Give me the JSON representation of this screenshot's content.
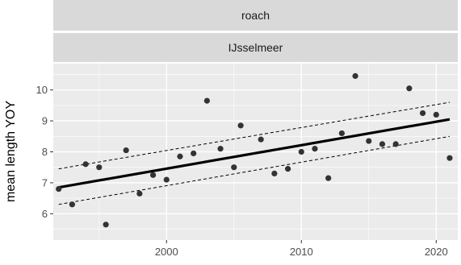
{
  "facet": {
    "strip_top": "roach",
    "strip_bottom": "IJsselmeer"
  },
  "colors": {
    "panel_background": "#ebebeb",
    "strip_background": "#d9d9d9",
    "gridline": "#ffffff",
    "point": "#333333",
    "fit_line": "#000000",
    "confidence_band": "#000000"
  },
  "chart_data": {
    "type": "scatter",
    "ylabel": "mean length YOY",
    "xlabel": "",
    "title": "",
    "xlim": [
      1991.6,
      2021.6
    ],
    "ylim": [
      5.15,
      10.85
    ],
    "x_ticks": [
      2000,
      2010,
      2020
    ],
    "y_ticks": [
      6,
      7,
      8,
      9,
      10
    ],
    "grid": true,
    "points": [
      {
        "x": 1992,
        "y": 6.8
      },
      {
        "x": 1993,
        "y": 6.3
      },
      {
        "x": 1994,
        "y": 7.6
      },
      {
        "x": 1995,
        "y": 7.5
      },
      {
        "x": 1995.5,
        "y": 5.65
      },
      {
        "x": 1997,
        "y": 8.05
      },
      {
        "x": 1998,
        "y": 6.65
      },
      {
        "x": 1999,
        "y": 7.25
      },
      {
        "x": 2000,
        "y": 7.1
      },
      {
        "x": 2001,
        "y": 7.85
      },
      {
        "x": 2002,
        "y": 7.95
      },
      {
        "x": 2003,
        "y": 9.65
      },
      {
        "x": 2004,
        "y": 8.1
      },
      {
        "x": 2005,
        "y": 7.5
      },
      {
        "x": 2005.5,
        "y": 8.85
      },
      {
        "x": 2007,
        "y": 8.4
      },
      {
        "x": 2008,
        "y": 7.3
      },
      {
        "x": 2009,
        "y": 7.45
      },
      {
        "x": 2010,
        "y": 8.0
      },
      {
        "x": 2011,
        "y": 8.1
      },
      {
        "x": 2012,
        "y": 7.15
      },
      {
        "x": 2013,
        "y": 8.6
      },
      {
        "x": 2014,
        "y": 10.45
      },
      {
        "x": 2015,
        "y": 8.35
      },
      {
        "x": 2016,
        "y": 8.25
      },
      {
        "x": 2017,
        "y": 8.25
      },
      {
        "x": 2018,
        "y": 10.05
      },
      {
        "x": 2019,
        "y": 9.25
      },
      {
        "x": 2020,
        "y": 9.2
      },
      {
        "x": 2021,
        "y": 7.8
      }
    ],
    "fit": {
      "x": [
        1992,
        2021
      ],
      "y": [
        6.85,
        9.05
      ],
      "upper": [
        7.45,
        9.6
      ],
      "lower": [
        6.3,
        8.5
      ]
    }
  }
}
